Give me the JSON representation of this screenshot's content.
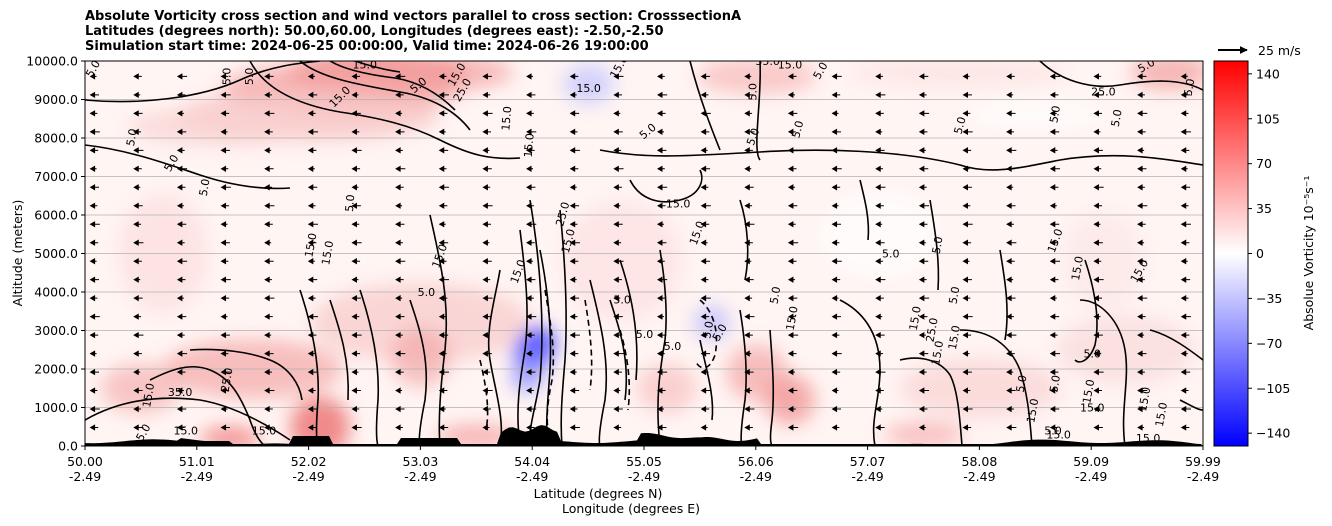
{
  "chart_data": {
    "type": "contour",
    "title_lines": [
      "Absolute Vorticity cross section and wind vectors parallel to cross section: CrosssectionA",
      "Latitudes (degrees north): 50.00,60.00, Longitudes (degrees east): -2.50,-2.50",
      "Simulation start time: 2024-06-25 00:00:00, Valid time: 2024-06-26 19:00:00"
    ],
    "ylabel": "Altitude (meters)",
    "xlabel_lat": "Latitude (degrees N)",
    "xlabel_lon": "Longitude (degrees E)",
    "ylim": [
      0,
      10000
    ],
    "y_ticks": [
      "0.0",
      "1000.0",
      "2000.0",
      "3000.0",
      "4000.0",
      "5000.0",
      "6000.0",
      "7000.0",
      "8000.0",
      "9000.0",
      "10000.0"
    ],
    "x_ticks_lat": [
      "50.00",
      "51.01",
      "52.02",
      "53.03",
      "54.04",
      "55.05",
      "56.06",
      "57.07",
      "58.08",
      "59.09",
      "59.99"
    ],
    "x_ticks_lon": [
      "-2.49",
      "-2.49",
      "-2.49",
      "-2.49",
      "-2.49",
      "-2.49",
      "-2.49",
      "-2.49",
      "-2.49",
      "-2.49",
      "-2.49"
    ],
    "colorbar": {
      "label": "Absolue Vorticity 10$^{-5}$s$^{-1}$",
      "label_display": "Absolue Vorticity 10⁻⁵s⁻¹",
      "range": [
        -150,
        150
      ],
      "ticks": [
        "140",
        "105",
        "70",
        "35",
        "0",
        "−35",
        "−70",
        "−105",
        "−140"
      ],
      "colors": {
        "min": "#0000ff",
        "mid": "#ffffff",
        "max": "#ff0000"
      }
    },
    "quiver_key": "25 m/s",
    "contour_levels": [
      "5.0",
      "15.0",
      "25.0",
      "35.0"
    ],
    "contour_labels": [
      {
        "text": "5.0",
        "lat": 50.1,
        "alt": 9750,
        "rot": -60
      },
      {
        "text": "5.0",
        "lat": 51.3,
        "alt": 9600,
        "rot": -90
      },
      {
        "text": "5.0",
        "lat": 51.5,
        "alt": 9600,
        "rot": -90
      },
      {
        "text": "5.0",
        "lat": 50.45,
        "alt": 8000,
        "rot": -80
      },
      {
        "text": "5.0",
        "lat": 50.8,
        "alt": 7300,
        "rot": -60
      },
      {
        "text": "5.0",
        "lat": 51.1,
        "alt": 6700,
        "rot": -80
      },
      {
        "text": "15.0",
        "lat": 52.5,
        "alt": 9800,
        "rot": 0
      },
      {
        "text": "15.0",
        "lat": 52.3,
        "alt": 9000,
        "rot": -45
      },
      {
        "text": "25.0",
        "lat": 53.4,
        "alt": 9200,
        "rot": -60
      },
      {
        "text": "5.0",
        "lat": 53.0,
        "alt": 9300,
        "rot": -40
      },
      {
        "text": "15.0",
        "lat": 53.35,
        "alt": 9600,
        "rot": -60
      },
      {
        "text": "15.0",
        "lat": 53.8,
        "alt": 8500,
        "rot": -85
      },
      {
        "text": "15.0",
        "lat": 54.0,
        "alt": 7800,
        "rot": -85
      },
      {
        "text": "15.0",
        "lat": 54.5,
        "alt": 9200,
        "rot": 0
      },
      {
        "text": "15.0",
        "lat": 54.8,
        "alt": 9800,
        "rot": -60
      },
      {
        "text": "5.0",
        "lat": 55.05,
        "alt": 8100,
        "rot": -40
      },
      {
        "text": "5.0",
        "lat": 56.0,
        "alt": 9200,
        "rot": -90
      },
      {
        "text": "35.0",
        "lat": 56.1,
        "alt": 9900,
        "rot": 0
      },
      {
        "text": "15.0",
        "lat": 56.3,
        "alt": 9800,
        "rot": 0
      },
      {
        "text": "5.0",
        "lat": 56.6,
        "alt": 9700,
        "rot": -60
      },
      {
        "text": "5.0",
        "lat": 56.0,
        "alt": 8000,
        "rot": -70
      },
      {
        "text": "5.0",
        "lat": 56.4,
        "alt": 8200,
        "rot": -75
      },
      {
        "text": "5.0",
        "lat": 57.85,
        "alt": 8300,
        "rot": -75
      },
      {
        "text": "5.0",
        "lat": 59.5,
        "alt": 9800,
        "rot": -30
      },
      {
        "text": "25.0",
        "lat": 59.1,
        "alt": 9100,
        "rot": 0
      },
      {
        "text": "5.0",
        "lat": 58.7,
        "alt": 8600,
        "rot": -80
      },
      {
        "text": "5.0",
        "lat": 59.25,
        "alt": 8500,
        "rot": -80
      },
      {
        "text": "5.0",
        "lat": 59.9,
        "alt": 9300,
        "rot": -80
      },
      {
        "text": "15.0",
        "lat": 55.3,
        "alt": 6200,
        "rot": 0
      },
      {
        "text": "15.0",
        "lat": 54.35,
        "alt": 5300,
        "rot": -75
      },
      {
        "text": "25.0",
        "lat": 54.3,
        "alt": 6000,
        "rot": -75
      },
      {
        "text": "15.0",
        "lat": 55.5,
        "alt": 5500,
        "rot": -70
      },
      {
        "text": "15.0",
        "lat": 53.2,
        "alt": 4900,
        "rot": -70
      },
      {
        "text": "15.0",
        "lat": 52.05,
        "alt": 5200,
        "rot": -80
      },
      {
        "text": "15.0",
        "lat": 52.2,
        "alt": 5000,
        "rot": -80
      },
      {
        "text": "5.0",
        "lat": 52.4,
        "alt": 6300,
        "rot": -85
      },
      {
        "text": "15.0",
        "lat": 53.9,
        "alt": 4500,
        "rot": -70
      },
      {
        "text": "5.0",
        "lat": 57.2,
        "alt": 4900,
        "rot": 0
      },
      {
        "text": "5.0",
        "lat": 57.65,
        "alt": 5200,
        "rot": -80
      },
      {
        "text": "15.0",
        "lat": 58.7,
        "alt": 5300,
        "rot": -70
      },
      {
        "text": "15.0",
        "lat": 58.9,
        "alt": 4600,
        "rot": -80
      },
      {
        "text": "15.0",
        "lat": 59.45,
        "alt": 4500,
        "rot": -60
      },
      {
        "text": "5.0",
        "lat": 53.05,
        "alt": 3900,
        "rot": 0
      },
      {
        "text": "5.0",
        "lat": 54.8,
        "alt": 3700,
        "rot": 0
      },
      {
        "text": "5.0",
        "lat": 55.0,
        "alt": 2800,
        "rot": 0
      },
      {
        "text": "5.0",
        "lat": 56.2,
        "alt": 3900,
        "rot": -80
      },
      {
        "text": "15.0",
        "lat": 56.35,
        "alt": 3300,
        "rot": -80
      },
      {
        "text": "15.0",
        "lat": 57.45,
        "alt": 3300,
        "rot": -80
      },
      {
        "text": "25.0",
        "lat": 57.6,
        "alt": 3000,
        "rot": -80
      },
      {
        "text": "15.0",
        "lat": 57.65,
        "alt": 2400,
        "rot": -80
      },
      {
        "text": "5.0",
        "lat": 57.8,
        "alt": 3900,
        "rot": -80
      },
      {
        "text": "15.0",
        "lat": 57.8,
        "alt": 2800,
        "rot": -80
      },
      {
        "text": "5.0",
        "lat": 59.0,
        "alt": 2300,
        "rot": 0
      },
      {
        "text": "5.0",
        "lat": 58.7,
        "alt": 1600,
        "rot": -80
      },
      {
        "text": "5.0",
        "lat": 58.4,
        "alt": 1600,
        "rot": -80
      },
      {
        "text": "15.0",
        "lat": 59.0,
        "alt": 1400,
        "rot": -80
      },
      {
        "text": "15.0",
        "lat": 59.0,
        "alt": 900,
        "rot": 0
      },
      {
        "text": "15.0",
        "lat": 58.5,
        "alt": 900,
        "rot": -80
      },
      {
        "text": "15.0",
        "lat": 59.5,
        "alt": 1200,
        "rot": -80
      },
      {
        "text": "15.0",
        "lat": 59.65,
        "alt": 800,
        "rot": -80
      },
      {
        "text": "15.0",
        "lat": 58.7,
        "alt": 200,
        "rot": 0
      },
      {
        "text": "15.0",
        "lat": 59.5,
        "alt": 100,
        "rot": 0
      },
      {
        "text": "5.0",
        "lat": 58.65,
        "alt": 300,
        "rot": 0
      },
      {
        "text": "35.0",
        "lat": 50.85,
        "alt": 1300,
        "rot": 0
      },
      {
        "text": "15.0",
        "lat": 50.6,
        "alt": 1300,
        "rot": -80
      },
      {
        "text": "25.0",
        "lat": 51.3,
        "alt": 1700,
        "rot": -80
      },
      {
        "text": "15.0",
        "lat": 50.9,
        "alt": 300,
        "rot": 0
      },
      {
        "text": "15.0",
        "lat": 51.6,
        "alt": 300,
        "rot": 0
      },
      {
        "text": "5.0",
        "lat": 50.55,
        "alt": 300,
        "rot": -60
      },
      {
        "text": "5.0",
        "lat": 55.25,
        "alt": 2500,
        "rot": 0
      },
      {
        "text": "5.0",
        "lat": 55.6,
        "alt": 3000,
        "rot": -80
      },
      {
        "text": "5.0",
        "lat": 55.7,
        "alt": 2900,
        "rot": -60
      }
    ]
  }
}
